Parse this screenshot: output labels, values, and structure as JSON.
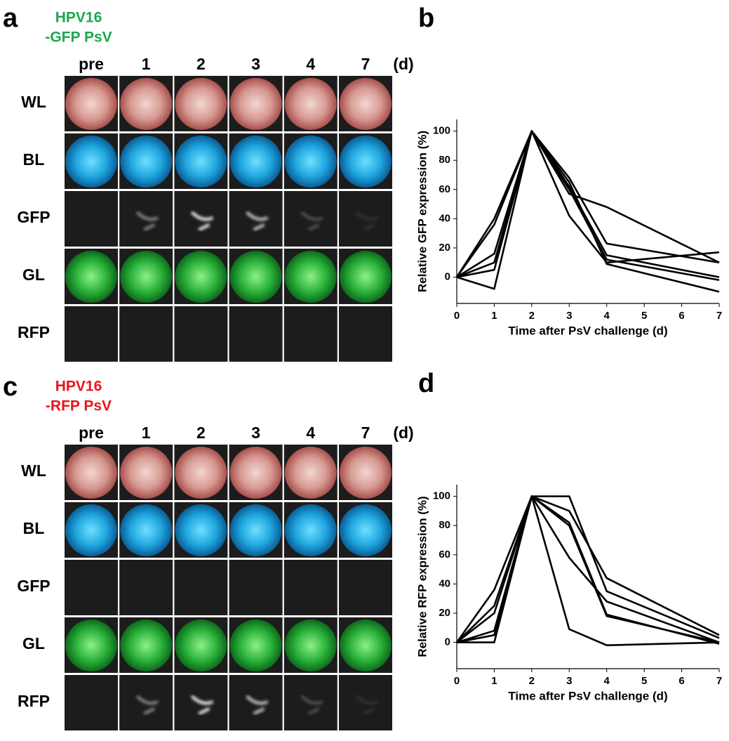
{
  "panels": [
    {
      "label": "a",
      "title": [
        "HPV16",
        "-GFP PsV"
      ],
      "title_color": "#1ba84f",
      "columns": [
        "pre",
        "1",
        "2",
        "3",
        "4",
        "7"
      ],
      "unit": "(d)",
      "rows": [
        "WL",
        "BL",
        "GFP",
        "GL",
        "RFP"
      ]
    },
    {
      "label": "c",
      "title": [
        "HPV16",
        "-RFP PsV"
      ],
      "title_color": "#e8141c",
      "columns": [
        "pre",
        "1",
        "2",
        "3",
        "4",
        "7"
      ],
      "unit": "(d)",
      "rows": [
        "WL",
        "BL",
        "GFP",
        "GL",
        "RFP"
      ]
    }
  ],
  "chart_data": [
    {
      "type": "line",
      "panel_label": "b",
      "xlabel": "Time after PsV challenge (d)",
      "ylabel": "Relative GFP expression (%)",
      "color": "#000000",
      "x": [
        0,
        1,
        2,
        3,
        4,
        7
      ],
      "xlim": [
        0,
        7
      ],
      "xticks": [
        0,
        1,
        2,
        3,
        4,
        5,
        6,
        7
      ],
      "ylim": [
        -18,
        108
      ],
      "yticks": [
        0,
        20,
        40,
        60,
        80,
        100
      ],
      "series": [
        {
          "values": [
            0,
            36,
            100,
            57,
            48,
            10
          ]
        },
        {
          "values": [
            0,
            -8,
            100,
            42,
            10,
            17
          ]
        },
        {
          "values": [
            0,
            16,
            100,
            68,
            23,
            10
          ]
        },
        {
          "values": [
            0,
            5,
            100,
            62,
            15,
            0
          ]
        },
        {
          "values": [
            0,
            10,
            100,
            65,
            9,
            -10
          ]
        },
        {
          "values": [
            0,
            40,
            100,
            60,
            12,
            -2
          ]
        }
      ]
    },
    {
      "type": "line",
      "panel_label": "d",
      "xlabel": "Time after PsV challenge (d)",
      "ylabel": "Relative RFP expression (%)",
      "color": "#000000",
      "x": [
        0,
        1,
        2,
        3,
        4,
        7
      ],
      "xlim": [
        0,
        7
      ],
      "xticks": [
        0,
        1,
        2,
        3,
        4,
        5,
        6,
        7
      ],
      "ylim": [
        -18,
        108
      ],
      "yticks": [
        0,
        20,
        40,
        60,
        80,
        100
      ],
      "series": [
        {
          "values": [
            0,
            36,
            100,
            90,
            44,
            5
          ]
        },
        {
          "values": [
            0,
            0,
            100,
            9,
            -2,
            0
          ]
        },
        {
          "values": [
            0,
            20,
            100,
            100,
            35,
            3
          ]
        },
        {
          "values": [
            0,
            8,
            100,
            80,
            18,
            0
          ]
        },
        {
          "values": [
            0,
            25,
            100,
            58,
            28,
            0
          ]
        },
        {
          "values": [
            0,
            5,
            100,
            82,
            19,
            -1
          ]
        }
      ]
    }
  ]
}
